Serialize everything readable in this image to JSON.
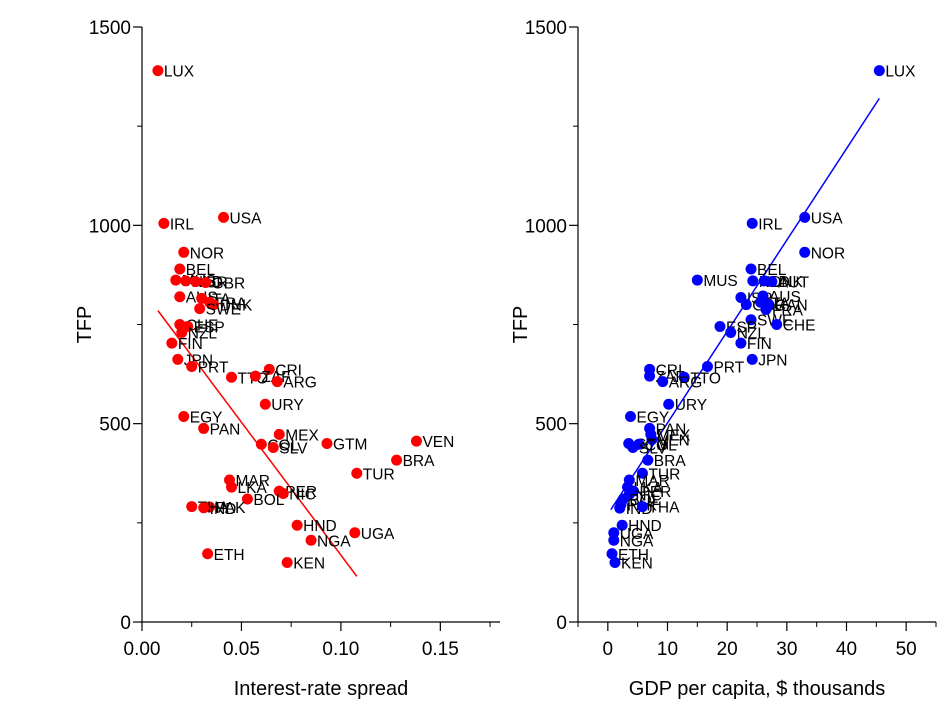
{
  "chart_data": [
    {
      "type": "scatter",
      "xlabel": "Interest-rate spread",
      "ylabel": "TFP",
      "xlim": [
        0,
        0.18
      ],
      "ylim": [
        0,
        1500
      ],
      "xticks": [
        "0.00",
        "0.05",
        "0.10",
        "0.15"
      ],
      "yticks": [
        "0",
        "500",
        "1000",
        "1500"
      ],
      "color": "#ff0000",
      "fit_line": {
        "x": [
          0.008,
          0.108
        ],
        "y": [
          785,
          115
        ]
      },
      "points": [
        {
          "label": "LUX",
          "x": 0.008,
          "y": 1390
        },
        {
          "label": "IRL",
          "x": 0.011,
          "y": 1005
        },
        {
          "label": "USA",
          "x": 0.041,
          "y": 1020
        },
        {
          "label": "NOR",
          "x": 0.021,
          "y": 932
        },
        {
          "label": "BEL",
          "x": 0.019,
          "y": 890
        },
        {
          "label": "MUS",
          "x": 0.017,
          "y": 862
        },
        {
          "label": "NLD",
          "x": 0.022,
          "y": 860
        },
        {
          "label": "ISR",
          "x": 0.027,
          "y": 858
        },
        {
          "label": "GBR",
          "x": 0.032,
          "y": 856
        },
        {
          "label": "AUS",
          "x": 0.019,
          "y": 820
        },
        {
          "label": "ITA",
          "x": 0.03,
          "y": 816
        },
        {
          "label": "FRA",
          "x": 0.034,
          "y": 806
        },
        {
          "label": "DNK",
          "x": 0.036,
          "y": 800
        },
        {
          "label": "SWE",
          "x": 0.029,
          "y": 790
        },
        {
          "label": "CHE",
          "x": 0.019,
          "y": 750
        },
        {
          "label": "ESP",
          "x": 0.023,
          "y": 745
        },
        {
          "label": "NZL",
          "x": 0.02,
          "y": 730
        },
        {
          "label": "FIN",
          "x": 0.015,
          "y": 703
        },
        {
          "label": "JPN",
          "x": 0.018,
          "y": 662
        },
        {
          "label": "PRT",
          "x": 0.025,
          "y": 644
        },
        {
          "label": "CRI",
          "x": 0.064,
          "y": 637
        },
        {
          "label": "TTO",
          "x": 0.045,
          "y": 617
        },
        {
          "label": "ZAF",
          "x": 0.057,
          "y": 620
        },
        {
          "label": "ARG",
          "x": 0.068,
          "y": 606
        },
        {
          "label": "URY",
          "x": 0.062,
          "y": 549
        },
        {
          "label": "EGY",
          "x": 0.021,
          "y": 518
        },
        {
          "label": "PAN",
          "x": 0.031,
          "y": 488
        },
        {
          "label": "MEX",
          "x": 0.069,
          "y": 473
        },
        {
          "label": "GTM",
          "x": 0.093,
          "y": 450
        },
        {
          "label": "VEN",
          "x": 0.138,
          "y": 456
        },
        {
          "label": "COL",
          "x": 0.06,
          "y": 448
        },
        {
          "label": "SLV",
          "x": 0.066,
          "y": 440
        },
        {
          "label": "BRA",
          "x": 0.128,
          "y": 408
        },
        {
          "label": "TUR",
          "x": 0.108,
          "y": 375
        },
        {
          "label": "MAR",
          "x": 0.044,
          "y": 358
        },
        {
          "label": "LKA",
          "x": 0.045,
          "y": 340
        },
        {
          "label": "PER",
          "x": 0.069,
          "y": 330
        },
        {
          "label": "NIC",
          "x": 0.071,
          "y": 324
        },
        {
          "label": "BOL",
          "x": 0.053,
          "y": 310
        },
        {
          "label": "PAK",
          "x": 0.034,
          "y": 290
        },
        {
          "label": "THA",
          "x": 0.025,
          "y": 291
        },
        {
          "label": "IND",
          "x": 0.031,
          "y": 288
        },
        {
          "label": "HND",
          "x": 0.078,
          "y": 244
        },
        {
          "label": "UGA",
          "x": 0.107,
          "y": 225
        },
        {
          "label": "NGA",
          "x": 0.085,
          "y": 206
        },
        {
          "label": "ETH",
          "x": 0.033,
          "y": 172
        },
        {
          "label": "KEN",
          "x": 0.073,
          "y": 150
        }
      ]
    },
    {
      "type": "scatter",
      "xlabel": "GDP per capita, $ thousands",
      "ylabel": "TFP",
      "xlim": [
        -5,
        55
      ],
      "ylim": [
        0,
        1500
      ],
      "xticks": [
        "0",
        "10",
        "20",
        "30",
        "40",
        "50"
      ],
      "yticks": [
        "0",
        "500",
        "1000",
        "1500"
      ],
      "color": "#0000ff",
      "fit_line": {
        "x": [
          0.5,
          45.5
        ],
        "y": [
          283,
          1320
        ]
      },
      "points": [
        {
          "label": "LUX",
          "x": 45.5,
          "y": 1390
        },
        {
          "label": "USA",
          "x": 33.0,
          "y": 1020
        },
        {
          "label": "IRL",
          "x": 24.2,
          "y": 1005
        },
        {
          "label": "NOR",
          "x": 33.0,
          "y": 932
        },
        {
          "label": "BEL",
          "x": 24.0,
          "y": 890
        },
        {
          "label": "MUS",
          "x": 15.0,
          "y": 862
        },
        {
          "label": "NLD",
          "x": 24.3,
          "y": 860
        },
        {
          "label": "DNK",
          "x": 26.2,
          "y": 860
        },
        {
          "label": "AUT",
          "x": 27.5,
          "y": 858
        },
        {
          "label": "ISR",
          "x": 22.3,
          "y": 818
        },
        {
          "label": "AUS",
          "x": 26.0,
          "y": 822
        },
        {
          "label": "GBR",
          "x": 23.2,
          "y": 800
        },
        {
          "label": "ITA",
          "x": 25.6,
          "y": 806
        },
        {
          "label": "CAN",
          "x": 27.0,
          "y": 800
        },
        {
          "label": "FRA",
          "x": 26.5,
          "y": 788
        },
        {
          "label": "SWE",
          "x": 24.0,
          "y": 762
        },
        {
          "label": "CHE",
          "x": 28.3,
          "y": 750
        },
        {
          "label": "ESP",
          "x": 18.8,
          "y": 745
        },
        {
          "label": "NZL",
          "x": 20.6,
          "y": 730
        },
        {
          "label": "FIN",
          "x": 22.3,
          "y": 703
        },
        {
          "label": "JPN",
          "x": 24.2,
          "y": 662
        },
        {
          "label": "PRT",
          "x": 16.7,
          "y": 644
        },
        {
          "label": "CRI",
          "x": 7.0,
          "y": 637
        },
        {
          "label": "ZAF",
          "x": 7.0,
          "y": 620
        },
        {
          "label": "TTO",
          "x": 12.8,
          "y": 617
        },
        {
          "label": "ARG",
          "x": 9.2,
          "y": 606
        },
        {
          "label": "URY",
          "x": 10.2,
          "y": 549
        },
        {
          "label": "EGY",
          "x": 3.8,
          "y": 518
        },
        {
          "label": "PAN",
          "x": 7.0,
          "y": 488
        },
        {
          "label": "MEX",
          "x": 7.2,
          "y": 473
        },
        {
          "label": "VEN",
          "x": 7.4,
          "y": 460
        },
        {
          "label": "GTM",
          "x": 3.5,
          "y": 450
        },
        {
          "label": "COL",
          "x": 5.2,
          "y": 448
        },
        {
          "label": "SLV",
          "x": 4.2,
          "y": 440
        },
        {
          "label": "BRA",
          "x": 6.7,
          "y": 408
        },
        {
          "label": "TUR",
          "x": 5.8,
          "y": 375
        },
        {
          "label": "MAR",
          "x": 3.6,
          "y": 358
        },
        {
          "label": "LKA",
          "x": 3.3,
          "y": 340
        },
        {
          "label": "PER",
          "x": 4.3,
          "y": 330
        },
        {
          "label": "NIC",
          "x": 3.6,
          "y": 322
        },
        {
          "label": "BOL",
          "x": 2.6,
          "y": 310
        },
        {
          "label": "PAK",
          "x": 2.2,
          "y": 296
        },
        {
          "label": "IND",
          "x": 2.0,
          "y": 287
        },
        {
          "label": "THA",
          "x": 5.8,
          "y": 291
        },
        {
          "label": "HND",
          "x": 2.4,
          "y": 244
        },
        {
          "label": "UGA",
          "x": 1.0,
          "y": 225
        },
        {
          "label": "NGA",
          "x": 1.0,
          "y": 206
        },
        {
          "label": "ETH",
          "x": 0.7,
          "y": 172
        },
        {
          "label": "KEN",
          "x": 1.2,
          "y": 150
        }
      ]
    }
  ]
}
